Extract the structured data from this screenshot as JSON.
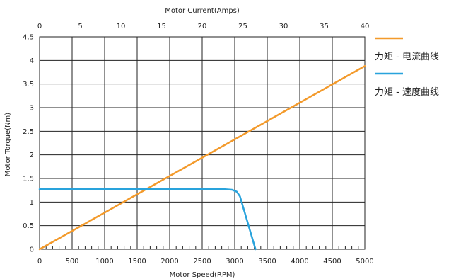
{
  "chart_data": {
    "type": "line",
    "title": "",
    "top_axis": {
      "label": "Motor Current(Amps)",
      "range": [
        0,
        40
      ],
      "ticks": [
        "0",
        "5",
        "10",
        "15",
        "20",
        "25",
        "30",
        "35",
        "40"
      ]
    },
    "bottom_axis": {
      "label": "Motor Speed(RPM)",
      "range": [
        0,
        5000
      ],
      "ticks": [
        "0",
        "500",
        "1000",
        "1500",
        "2000",
        "2500",
        "3000",
        "3500",
        "4000",
        "4500",
        "5000"
      ]
    },
    "left_axis": {
      "label": "Motor Torque(Nm)",
      "range": [
        0,
        4.5
      ],
      "ticks": [
        "0",
        "0.5",
        "1",
        "1.5",
        "2",
        "2.5",
        "3",
        "3.5",
        "4",
        "4.5"
      ]
    },
    "grid": true,
    "legend_position": "right",
    "series": [
      {
        "name": "力矩 - 电流曲线",
        "x_axis": "Motor Current(Amps)",
        "color": "#f39a2b",
        "points": [
          [
            0,
            0
          ],
          [
            40,
            3.88
          ]
        ]
      },
      {
        "name": "力矩 - 速度曲线",
        "x_axis": "Motor Speed(RPM)",
        "color": "#29a3dc",
        "points": [
          [
            0,
            1.27
          ],
          [
            2850,
            1.27
          ],
          [
            2960,
            1.26
          ],
          [
            3030,
            1.22
          ],
          [
            3080,
            1.12
          ],
          [
            3320,
            0
          ]
        ]
      }
    ]
  }
}
